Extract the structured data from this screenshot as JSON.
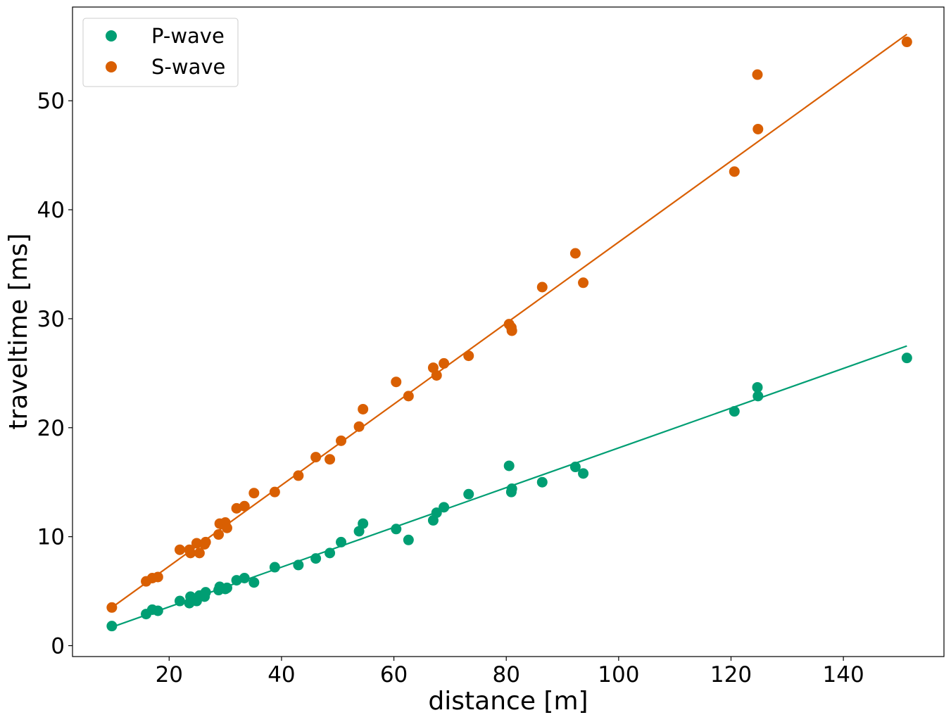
{
  "chart_data": {
    "type": "scatter",
    "title": "",
    "xlabel": "distance [m]",
    "ylabel": "traveltime [ms]",
    "xlim": [
      2.8,
      157.9
    ],
    "ylim": [
      -1.0,
      58.6
    ],
    "xticks": [
      20,
      40,
      60,
      80,
      100,
      120,
      140
    ],
    "yticks": [
      0,
      10,
      20,
      30,
      40,
      50
    ],
    "grid": false,
    "legend_position": "top-left",
    "series": [
      {
        "name": "P-wave",
        "color": "#009e73",
        "points": [
          [
            9.8,
            1.8
          ],
          [
            15.9,
            2.9
          ],
          [
            17.0,
            3.3
          ],
          [
            18.0,
            3.2
          ],
          [
            21.9,
            4.1
          ],
          [
            23.6,
            3.9
          ],
          [
            23.8,
            4.5
          ],
          [
            24.9,
            4.1
          ],
          [
            25.4,
            4.6
          ],
          [
            26.3,
            4.5
          ],
          [
            26.5,
            4.9
          ],
          [
            28.8,
            5.1
          ],
          [
            29.0,
            5.4
          ],
          [
            30.0,
            5.2
          ],
          [
            30.3,
            5.3
          ],
          [
            32.0,
            6.0
          ],
          [
            33.4,
            6.2
          ],
          [
            35.1,
            5.8
          ],
          [
            38.8,
            7.2
          ],
          [
            43.0,
            7.4
          ],
          [
            46.1,
            8.0
          ],
          [
            48.6,
            8.5
          ],
          [
            50.6,
            9.5
          ],
          [
            53.8,
            10.5
          ],
          [
            54.5,
            11.2
          ],
          [
            60.4,
            10.7
          ],
          [
            62.6,
            9.7
          ],
          [
            67.0,
            11.5
          ],
          [
            67.6,
            12.2
          ],
          [
            68.9,
            12.7
          ],
          [
            73.3,
            13.9
          ],
          [
            80.5,
            16.5
          ],
          [
            80.9,
            14.1
          ],
          [
            81.0,
            14.4
          ],
          [
            86.4,
            15.0
          ],
          [
            92.3,
            16.4
          ],
          [
            93.7,
            15.8
          ],
          [
            120.6,
            21.5
          ],
          [
            124.7,
            23.7
          ],
          [
            124.8,
            22.9
          ],
          [
            151.3,
            26.4
          ]
        ],
        "fit": [
          [
            9.8,
            1.7
          ],
          [
            151.3,
            27.5
          ]
        ]
      },
      {
        "name": "S-wave",
        "color": "#d95f02",
        "points": [
          [
            9.8,
            3.5
          ],
          [
            15.9,
            5.9
          ],
          [
            17.0,
            6.2
          ],
          [
            18.0,
            6.3
          ],
          [
            21.9,
            8.8
          ],
          [
            23.6,
            8.8
          ],
          [
            23.8,
            8.5
          ],
          [
            24.9,
            9.4
          ],
          [
            25.4,
            8.5
          ],
          [
            26.3,
            9.3
          ],
          [
            26.5,
            9.5
          ],
          [
            28.8,
            10.2
          ],
          [
            29.0,
            11.2
          ],
          [
            30.0,
            11.3
          ],
          [
            30.3,
            10.8
          ],
          [
            32.0,
            12.6
          ],
          [
            33.4,
            12.8
          ],
          [
            35.1,
            14.0
          ],
          [
            38.8,
            14.1
          ],
          [
            43.0,
            15.6
          ],
          [
            46.1,
            17.3
          ],
          [
            48.6,
            17.1
          ],
          [
            50.6,
            18.8
          ],
          [
            53.8,
            20.1
          ],
          [
            54.5,
            21.7
          ],
          [
            60.4,
            24.2
          ],
          [
            62.6,
            22.9
          ],
          [
            67.0,
            25.5
          ],
          [
            67.6,
            24.8
          ],
          [
            68.9,
            25.9
          ],
          [
            73.3,
            26.6
          ],
          [
            80.5,
            29.5
          ],
          [
            80.9,
            29.2
          ],
          [
            81.0,
            28.9
          ],
          [
            86.4,
            32.9
          ],
          [
            92.3,
            36.0
          ],
          [
            93.7,
            33.3
          ],
          [
            120.6,
            43.5
          ],
          [
            124.7,
            52.4
          ],
          [
            124.8,
            47.4
          ],
          [
            151.3,
            55.4
          ]
        ],
        "fit": [
          [
            9.8,
            3.5
          ],
          [
            151.3,
            56.1
          ]
        ]
      }
    ]
  }
}
